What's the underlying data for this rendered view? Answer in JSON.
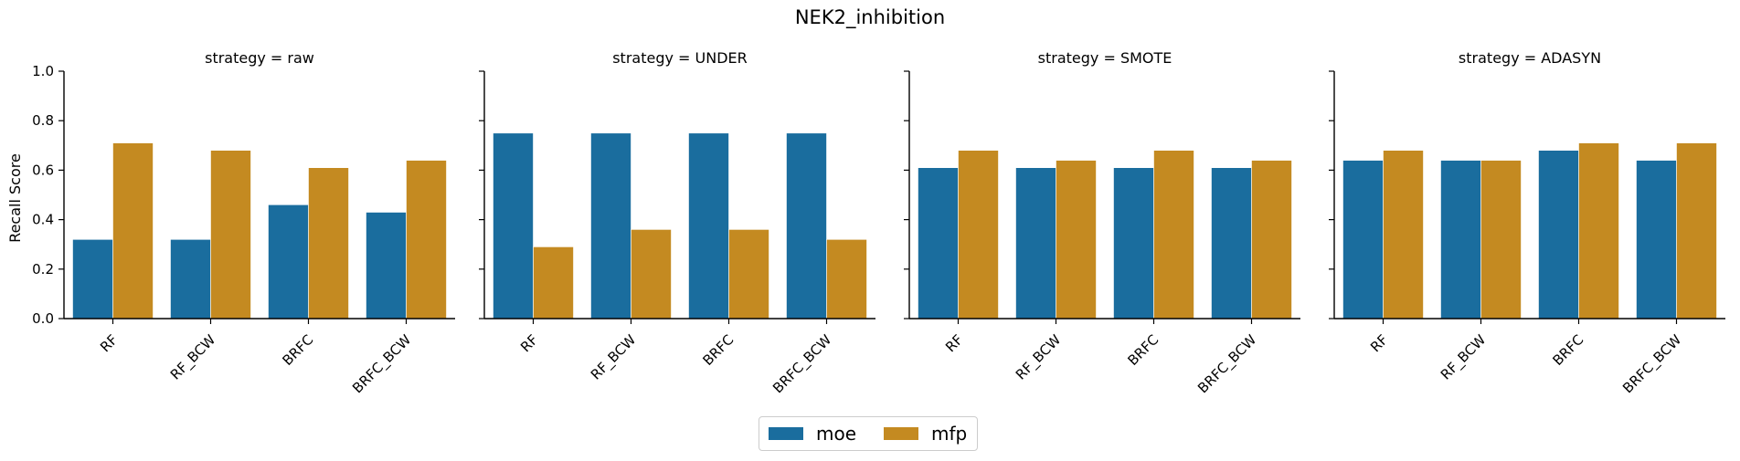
{
  "chart_data": {
    "type": "bar",
    "title": "NEK2_inhibition",
    "ylabel": "Recall Score",
    "xlabel": "",
    "ylim": [
      0,
      1.0
    ],
    "yticks": [
      "0.0",
      "0.2",
      "0.4",
      "0.6",
      "0.8",
      "1.0"
    ],
    "categories": [
      "RF",
      "RF_BCW",
      "BRFC",
      "BRFC_BCW"
    ],
    "colors": {
      "moe": "#1a6d9e",
      "mfp": "#c48a21"
    },
    "legend": {
      "placement": "bottom-center",
      "labels": [
        "moe",
        "mfp"
      ]
    },
    "panels": [
      {
        "title": "strategy = raw",
        "series": [
          {
            "name": "moe",
            "values": [
              0.32,
              0.32,
              0.46,
              0.43
            ]
          },
          {
            "name": "mfp",
            "values": [
              0.71,
              0.68,
              0.61,
              0.64
            ]
          }
        ]
      },
      {
        "title": "strategy = UNDER",
        "series": [
          {
            "name": "moe",
            "values": [
              0.75,
              0.75,
              0.75,
              0.75
            ]
          },
          {
            "name": "mfp",
            "values": [
              0.29,
              0.36,
              0.36,
              0.32
            ]
          }
        ]
      },
      {
        "title": "strategy = SMOTE",
        "series": [
          {
            "name": "moe",
            "values": [
              0.61,
              0.61,
              0.61,
              0.61
            ]
          },
          {
            "name": "mfp",
            "values": [
              0.68,
              0.64,
              0.68,
              0.64
            ]
          }
        ]
      },
      {
        "title": "strategy = ADASYN",
        "series": [
          {
            "name": "moe",
            "values": [
              0.64,
              0.64,
              0.68,
              0.64
            ]
          },
          {
            "name": "mfp",
            "values": [
              0.68,
              0.64,
              0.71,
              0.71
            ]
          }
        ]
      }
    ]
  }
}
